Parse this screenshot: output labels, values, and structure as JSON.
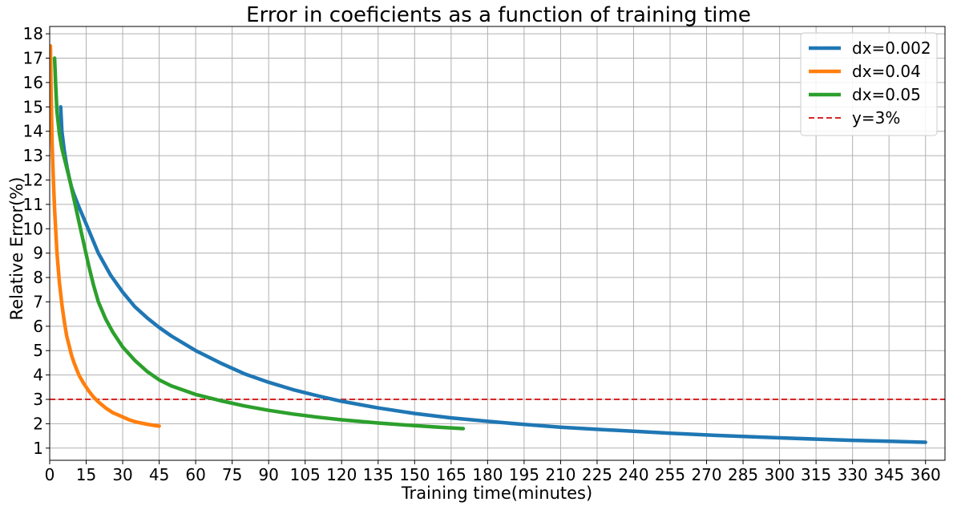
{
  "chart_data": {
    "type": "line",
    "title": "Error in coeficients as a function of training time",
    "xlabel": "Training time(minutes)",
    "ylabel": "Relative Error(%)",
    "xlim": [
      0,
      368
    ],
    "ylim": [
      0.5,
      18.3
    ],
    "xticks": [
      0,
      15,
      30,
      45,
      60,
      75,
      90,
      105,
      120,
      135,
      150,
      165,
      180,
      195,
      210,
      225,
      240,
      255,
      270,
      285,
      300,
      315,
      330,
      345,
      360
    ],
    "yticks": [
      1,
      2,
      3,
      4,
      5,
      6,
      7,
      8,
      9,
      10,
      11,
      12,
      13,
      14,
      15,
      16,
      17,
      18
    ],
    "grid": true,
    "legend_position": "top-right",
    "series": [
      {
        "name": "dx=0.002",
        "color": "#1f77b4",
        "style": "solid",
        "x": [
          4.5,
          5,
          6,
          7,
          8,
          9,
          10,
          12,
          15,
          20,
          25,
          30,
          35,
          40,
          45,
          50,
          55,
          60,
          70,
          80,
          90,
          100,
          110,
          120,
          135,
          150,
          165,
          180,
          195,
          210,
          225,
          240,
          255,
          270,
          285,
          300,
          315,
          330,
          345,
          360
        ],
        "y": [
          15.0,
          14.0,
          13.2,
          12.6,
          12.1,
          11.7,
          11.4,
          10.9,
          10.2,
          9.0,
          8.1,
          7.4,
          6.8,
          6.35,
          5.95,
          5.6,
          5.3,
          5.0,
          4.5,
          4.05,
          3.7,
          3.4,
          3.15,
          2.92,
          2.65,
          2.42,
          2.24,
          2.1,
          1.97,
          1.86,
          1.77,
          1.69,
          1.61,
          1.54,
          1.48,
          1.42,
          1.37,
          1.32,
          1.28,
          1.24
        ]
      },
      {
        "name": "dx=0.04",
        "color": "#ff7f0e",
        "style": "solid",
        "x": [
          0.3,
          0.6,
          1,
          1.5,
          2,
          3,
          4,
          5,
          6,
          7,
          8,
          9,
          10,
          12,
          14,
          16,
          18,
          20,
          23,
          26,
          30,
          33,
          36,
          40,
          43,
          45
        ],
        "y": [
          17.5,
          15.5,
          13.5,
          12.0,
          10.8,
          9.0,
          7.8,
          6.9,
          6.2,
          5.6,
          5.2,
          4.8,
          4.5,
          4.0,
          3.65,
          3.35,
          3.1,
          2.9,
          2.65,
          2.45,
          2.28,
          2.15,
          2.06,
          1.98,
          1.93,
          1.9
        ]
      },
      {
        "name": "dx=0.05",
        "color": "#2ca02c",
        "style": "solid",
        "x": [
          2,
          2.5,
          3,
          4,
          5,
          6,
          8,
          10,
          12,
          14,
          16,
          18,
          20,
          23,
          26,
          30,
          35,
          40,
          45,
          50,
          60,
          70,
          80,
          90,
          100,
          110,
          120,
          135,
          150,
          160,
          170
        ],
        "y": [
          17.0,
          15.8,
          14.8,
          13.9,
          13.3,
          12.9,
          12.1,
          11.2,
          10.3,
          9.4,
          8.5,
          7.7,
          7.0,
          6.3,
          5.75,
          5.15,
          4.6,
          4.15,
          3.8,
          3.55,
          3.2,
          2.95,
          2.73,
          2.55,
          2.4,
          2.27,
          2.16,
          2.03,
          1.92,
          1.86,
          1.8
        ]
      }
    ],
    "reference_lines": [
      {
        "name": "y=3%",
        "y": 3,
        "color": "#d62728",
        "style": "dashed"
      }
    ]
  }
}
